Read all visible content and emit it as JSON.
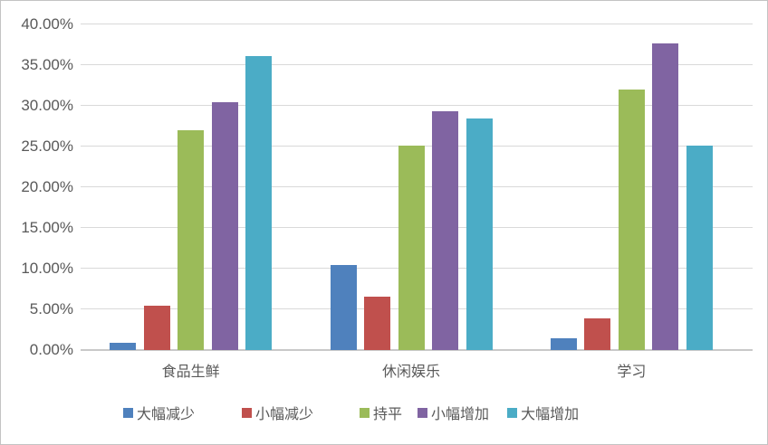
{
  "chart_data": {
    "type": "bar",
    "title": "",
    "xlabel": "",
    "ylabel": "",
    "categories": [
      "食品生鲜",
      "休闲娱乐",
      "学习"
    ],
    "series": [
      {
        "name": "大幅减少",
        "color": "#4F81BD",
        "values": [
          0.9,
          10.5,
          1.4
        ]
      },
      {
        "name": "小幅减少",
        "color": "#C0504D",
        "values": [
          5.4,
          6.6,
          3.9
        ]
      },
      {
        "name": "持平",
        "color": "#9BBB59",
        "values": [
          27.0,
          25.1,
          32.0
        ]
      },
      {
        "name": "小幅增加",
        "color": "#8064A2",
        "values": [
          30.5,
          29.3,
          37.7
        ]
      },
      {
        "name": "大幅增加",
        "color": "#4BACC6",
        "values": [
          36.1,
          28.4,
          25.1
        ]
      }
    ],
    "value_unit": "percent",
    "ylim": [
      0,
      40
    ],
    "ytick_step": 5,
    "ytick_labels": [
      "0.00%",
      "5.00%",
      "10.00%",
      "15.00%",
      "20.00%",
      "25.00%",
      "30.00%",
      "35.00%",
      "40.00%"
    ],
    "grid": "horizontal",
    "legend_position": "bottom"
  },
  "colors": {
    "background": "#FFFFFF",
    "border": "#C3C3C3",
    "gridline": "#D9D9D9",
    "axis_line": "#C9C9C9",
    "text": "#595959"
  }
}
